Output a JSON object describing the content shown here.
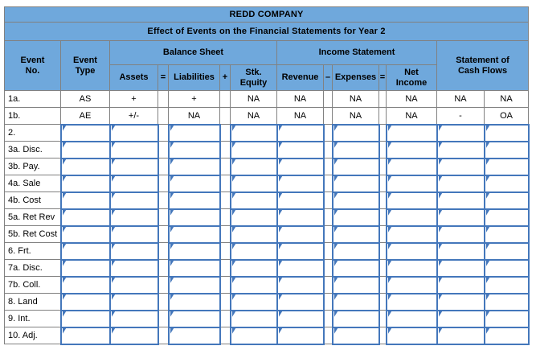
{
  "titles": {
    "company": "REDD COMPANY",
    "subtitle": "Effect of Events on the Financial Statements for Year 2"
  },
  "columns": {
    "event_no": "Event\nNo.",
    "event_type": "Event\nType",
    "balance_sheet": "Balance Sheet",
    "income_statement": "Income Statement",
    "cash_flows": "Statement of\nCash Flows",
    "assets": "Assets",
    "op_equals_bs": "=",
    "liabilities": "Liabilities",
    "op_plus": "+",
    "stk_equity": "Stk.\nEquity",
    "revenue": "Revenue",
    "op_minus": "–",
    "expenses": "Expenses",
    "op_equals_is": "=",
    "net_income": "Net\nIncome"
  },
  "colors": {
    "header_fill": "#6fa8dc",
    "grid_line": "#818181",
    "dropdown_border": "#4477bb"
  },
  "rows": [
    {
      "label": "1a.",
      "editable": false,
      "values": {
        "event_type": "AS",
        "assets": "+",
        "liabilities": "+",
        "stk_equity": "NA",
        "revenue": "NA",
        "expenses": "NA",
        "net_income": "NA",
        "cash_flow_1": "NA",
        "cash_flow_2": "NA"
      }
    },
    {
      "label": "1b.",
      "editable": false,
      "values": {
        "event_type": "AE",
        "assets": "+/-",
        "liabilities": "NA",
        "stk_equity": "NA",
        "revenue": "NA",
        "expenses": "NA",
        "net_income": "NA",
        "cash_flow_1": "-",
        "cash_flow_2": "OA"
      }
    },
    {
      "label": "2.",
      "editable": true,
      "values": {}
    },
    {
      "label": "3a. Disc.",
      "editable": true,
      "values": {}
    },
    {
      "label": "3b. Pay.",
      "editable": true,
      "values": {}
    },
    {
      "label": "4a. Sale",
      "editable": true,
      "values": {}
    },
    {
      "label": "4b. Cost",
      "editable": true,
      "values": {}
    },
    {
      "label": "5a. Ret Rev",
      "editable": true,
      "values": {}
    },
    {
      "label": "5b. Ret Cost",
      "editable": true,
      "values": {}
    },
    {
      "label": "6. Frt.",
      "editable": true,
      "values": {}
    },
    {
      "label": "7a. Disc.",
      "editable": true,
      "values": {}
    },
    {
      "label": "7b. Coll.",
      "editable": true,
      "values": {}
    },
    {
      "label": "8. Land",
      "editable": true,
      "values": {}
    },
    {
      "label": "9. Int.",
      "editable": true,
      "values": {}
    },
    {
      "label": "10. Adj.",
      "editable": true,
      "values": {}
    }
  ]
}
